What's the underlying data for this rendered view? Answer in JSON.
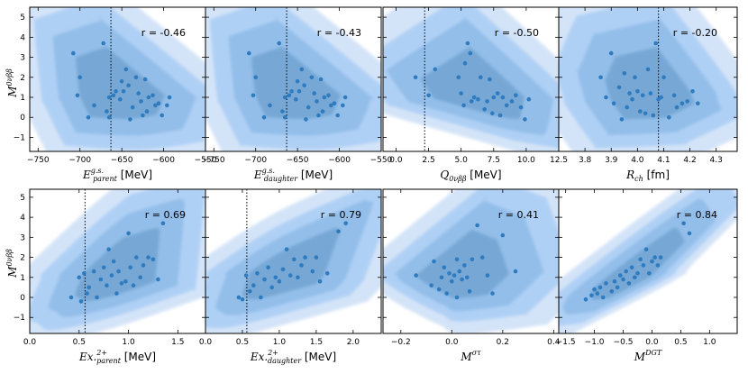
{
  "colors": {
    "kde_levels": [
      "#cfe1f7",
      "#a9cdf4",
      "#86b6e4",
      "#5f96c4"
    ],
    "kde_opacity": [
      0.9,
      0.85,
      0.7,
      0.55
    ],
    "point": "#2f7bbf",
    "axis": "#000000",
    "guide_line": "#000000"
  },
  "y_label": "M^0νββ",
  "chart_data": [
    {
      "type": "scatter",
      "id": "p-eparent",
      "xlabel": "E^{g.s.}_{parent} [MeV]",
      "xlabel_main": "E",
      "xlabel_sup": "g.s.",
      "xlabel_sub": "parent",
      "xlabel_tail": " [MeV]",
      "xlim": [
        -760,
        -550
      ],
      "xticks": [
        -750,
        -700,
        -650,
        -600,
        -550
      ],
      "xtick_labels": [
        "−750",
        "−700",
        "−650",
        "−600",
        "−550"
      ],
      "ylim": [
        -1.7,
        5.5
      ],
      "yticks": [
        -1,
        0,
        1,
        2,
        3,
        4,
        5
      ],
      "r_label": "r = -0.46",
      "vline": -663,
      "kde_center": [
        -660,
        1.3
      ],
      "points": [
        [
          -708,
          3.2
        ],
        [
          -700,
          2.0
        ],
        [
          -703,
          1.1
        ],
        [
          -690,
          0.0
        ],
        [
          -683,
          0.6
        ],
        [
          -672,
          3.7
        ],
        [
          -668,
          0.3
        ],
        [
          -665,
          0.0
        ],
        [
          -665,
          1.0
        ],
        [
          -660,
          1.1
        ],
        [
          -657,
          1.3
        ],
        [
          -652,
          0.9
        ],
        [
          -650,
          1.8
        ],
        [
          -648,
          1.3
        ],
        [
          -645,
          2.4
        ],
        [
          -642,
          1.6
        ],
        [
          -640,
          -0.1
        ],
        [
          -637,
          0.5
        ],
        [
          -633,
          2.0
        ],
        [
          -630,
          1.2
        ],
        [
          -627,
          0.8
        ],
        [
          -625,
          0.1
        ],
        [
          -622,
          1.9
        ],
        [
          -620,
          0.3
        ],
        [
          -618,
          1.0
        ],
        [
          -613,
          1.1
        ],
        [
          -610,
          0.6
        ],
        [
          -606,
          0.7
        ],
        [
          -602,
          0.1
        ],
        [
          -596,
          0.6
        ],
        [
          -593,
          1.0
        ]
      ]
    },
    {
      "type": "scatter",
      "id": "p-edaughter",
      "xlabel": "E^{g.s.}_{daughter} [MeV]",
      "xlabel_main": "E",
      "xlabel_sup": "g.s.",
      "xlabel_sub": "daughter",
      "xlabel_tail": " [MeV]",
      "xlim": [
        -760,
        -550
      ],
      "xticks": [
        -750,
        -700,
        -650,
        -600,
        -550
      ],
      "xtick_labels": [
        "−750",
        "−700",
        "−650",
        "−600",
        "−550"
      ],
      "ylim": [
        -1.7,
        5.5
      ],
      "yticks": [
        -1,
        0,
        1,
        2,
        3,
        4,
        5
      ],
      "r_label": "r = -0.43",
      "vline": -663,
      "kde_center": [
        -660,
        1.3
      ],
      "points": [
        [
          -708,
          3.2
        ],
        [
          -700,
          2.0
        ],
        [
          -703,
          1.1
        ],
        [
          -690,
          0.0
        ],
        [
          -683,
          0.6
        ],
        [
          -672,
          3.7
        ],
        [
          -668,
          0.3
        ],
        [
          -665,
          0.0
        ],
        [
          -665,
          1.0
        ],
        [
          -660,
          1.1
        ],
        [
          -657,
          1.3
        ],
        [
          -652,
          0.9
        ],
        [
          -650,
          1.8
        ],
        [
          -648,
          1.3
        ],
        [
          -645,
          2.4
        ],
        [
          -642,
          1.6
        ],
        [
          -640,
          -0.1
        ],
        [
          -637,
          0.5
        ],
        [
          -633,
          2.0
        ],
        [
          -630,
          1.2
        ],
        [
          -627,
          0.8
        ],
        [
          -625,
          0.1
        ],
        [
          -622,
          1.9
        ],
        [
          -620,
          0.3
        ],
        [
          -618,
          1.0
        ],
        [
          -613,
          1.1
        ],
        [
          -610,
          0.6
        ],
        [
          -606,
          0.7
        ],
        [
          -602,
          0.1
        ],
        [
          -596,
          0.6
        ],
        [
          -593,
          1.0
        ]
      ]
    },
    {
      "type": "scatter",
      "id": "p-q",
      "xlabel": "Q_{0νββ} [MeV]",
      "xlabel_main": "Q",
      "xlabel_sup": "",
      "xlabel_sub": "0νββ",
      "xlabel_tail": " [MeV]",
      "xlim": [
        -1,
        12.5
      ],
      "xticks": [
        0.0,
        2.5,
        5.0,
        7.5,
        10.0,
        12.5
      ],
      "xtick_labels": [
        "0.0",
        "2.5",
        "5.0",
        "7.5",
        "10.0",
        "12.5"
      ],
      "ylim": [
        -1.7,
        5.5
      ],
      "yticks": [
        -1,
        0,
        1,
        2,
        3,
        4,
        5
      ],
      "r_label": "r = -0.50",
      "vline": 2.2,
      "kde_center": [
        6.2,
        1.2
      ],
      "points": [
        [
          1.5,
          2.0
        ],
        [
          2.5,
          1.1
        ],
        [
          3.0,
          2.4
        ],
        [
          4.8,
          2.0
        ],
        [
          5.0,
          1.2
        ],
        [
          5.2,
          0.6
        ],
        [
          5.3,
          2.7
        ],
        [
          5.5,
          3.7
        ],
        [
          5.7,
          3.2
        ],
        [
          5.8,
          0.8
        ],
        [
          6.0,
          1.0
        ],
        [
          6.3,
          0.9
        ],
        [
          6.5,
          2.0
        ],
        [
          6.8,
          0.4
        ],
        [
          7.0,
          0.8
        ],
        [
          7.2,
          1.9
        ],
        [
          7.4,
          0.2
        ],
        [
          7.5,
          1.0
        ],
        [
          7.8,
          1.2
        ],
        [
          8.0,
          0.1
        ],
        [
          8.2,
          1.0
        ],
        [
          8.5,
          0.6
        ],
        [
          8.9,
          0.8
        ],
        [
          9.2,
          1.1
        ],
        [
          9.6,
          0.5
        ],
        [
          9.9,
          -0.1
        ],
        [
          10.2,
          0.9
        ]
      ]
    },
    {
      "type": "scatter",
      "id": "p-rch",
      "xlabel": "R_{ch} [fm]",
      "xlabel_main": "R",
      "xlabel_sup": "",
      "xlabel_sub": "ch",
      "xlabel_tail": " [fm]",
      "xlim": [
        3.7,
        4.38
      ],
      "xticks": [
        3.8,
        3.9,
        4.0,
        4.1,
        4.2,
        4.3
      ],
      "xtick_labels": [
        "3.8",
        "3.9",
        "4.0",
        "4.1",
        "4.2",
        "4.3"
      ],
      "ylim": [
        -1.7,
        5.5
      ],
      "yticks": [
        -1,
        0,
        1,
        2,
        3,
        4,
        5
      ],
      "r_label": "r = -0.20",
      "vline": 4.08,
      "kde_center": [
        4.05,
        1.2
      ],
      "points": [
        [
          3.86,
          2.0
        ],
        [
          3.88,
          1.0
        ],
        [
          3.9,
          3.2
        ],
        [
          3.91,
          0.7
        ],
        [
          3.93,
          1.5
        ],
        [
          3.94,
          -0.1
        ],
        [
          3.95,
          2.2
        ],
        [
          3.96,
          0.5
        ],
        [
          3.97,
          1.2
        ],
        [
          3.98,
          0.9
        ],
        [
          3.99,
          2.0
        ],
        [
          4.0,
          1.3
        ],
        [
          4.01,
          0.3
        ],
        [
          4.02,
          1.1
        ],
        [
          4.03,
          0.2
        ],
        [
          4.04,
          2.4
        ],
        [
          4.05,
          1.2
        ],
        [
          4.06,
          0.1
        ],
        [
          4.07,
          3.7
        ],
        [
          4.08,
          0.9
        ],
        [
          4.09,
          1.0
        ],
        [
          4.1,
          2.0
        ],
        [
          4.12,
          0.0
        ],
        [
          4.14,
          1.1
        ],
        [
          4.15,
          0.5
        ],
        [
          4.17,
          0.7
        ],
        [
          4.19,
          0.8
        ],
        [
          4.21,
          1.3
        ],
        [
          4.23,
          0.7
        ]
      ]
    },
    {
      "type": "scatter",
      "id": "p-exparent",
      "xlabel": "Ex.^{2+}_{parent} [MeV]",
      "xlabel_main": "Ex.",
      "xlabel_sup": "2+",
      "xlabel_sub": "parent",
      "xlabel_tail": " [MeV]",
      "xlim": [
        0.0,
        1.78
      ],
      "xticks": [
        0.0,
        0.5,
        1.0,
        1.5
      ],
      "xtick_labels": [
        "0.0",
        "0.5",
        "1.0",
        "1.5"
      ],
      "ylim": [
        -1.8,
        5.4
      ],
      "yticks": [
        -1,
        0,
        1,
        2,
        3,
        4,
        5
      ],
      "r_label": "r = 0.69",
      "vline": 0.56,
      "kde_center": [
        0.9,
        1.1
      ],
      "points": [
        [
          0.42,
          0.0
        ],
        [
          0.5,
          1.0
        ],
        [
          0.52,
          -0.2
        ],
        [
          0.55,
          1.2
        ],
        [
          0.58,
          0.2
        ],
        [
          0.6,
          0.5
        ],
        [
          0.65,
          1.3
        ],
        [
          0.68,
          0.0
        ],
        [
          0.72,
          0.9
        ],
        [
          0.75,
          1.5
        ],
        [
          0.78,
          0.6
        ],
        [
          0.8,
          2.4
        ],
        [
          0.83,
          1.1
        ],
        [
          0.85,
          1.8
        ],
        [
          0.88,
          0.2
        ],
        [
          0.9,
          1.3
        ],
        [
          0.93,
          0.7
        ],
        [
          0.97,
          0.8
        ],
        [
          1.0,
          3.2
        ],
        [
          1.02,
          1.5
        ],
        [
          1.05,
          0.6
        ],
        [
          1.08,
          2.0
        ],
        [
          1.12,
          1.0
        ],
        [
          1.15,
          1.6
        ],
        [
          1.2,
          2.0
        ],
        [
          1.25,
          1.9
        ],
        [
          1.3,
          0.9
        ],
        [
          1.35,
          3.7
        ]
      ]
    },
    {
      "type": "scatter",
      "id": "p-exdaughter",
      "xlabel": "Ex.^{2+}_{daughter} [MeV]",
      "xlabel_main": "Ex.",
      "xlabel_sup": "2+",
      "xlabel_sub": "daughter",
      "xlabel_tail": " [MeV]",
      "xlim": [
        0.0,
        2.38
      ],
      "xticks": [
        0.0,
        0.5,
        1.0,
        1.5,
        2.0
      ],
      "xtick_labels": [
        "0.0",
        "0.5",
        "1.0",
        "1.5",
        "2.0"
      ],
      "ylim": [
        -1.8,
        5.4
      ],
      "yticks": [
        -1,
        0,
        1,
        2,
        3,
        4,
        5
      ],
      "r_label": "r = 0.79",
      "vline": 0.56,
      "kde_center": [
        1.1,
        1.2
      ],
      "points": [
        [
          0.45,
          0.0
        ],
        [
          0.5,
          -0.1
        ],
        [
          0.55,
          1.1
        ],
        [
          0.6,
          0.3
        ],
        [
          0.65,
          0.6
        ],
        [
          0.7,
          1.2
        ],
        [
          0.75,
          0.0
        ],
        [
          0.8,
          0.9
        ],
        [
          0.85,
          1.5
        ],
        [
          0.9,
          0.5
        ],
        [
          0.95,
          1.0
        ],
        [
          1.0,
          0.8
        ],
        [
          1.05,
          1.4
        ],
        [
          1.1,
          2.4
        ],
        [
          1.15,
          1.1
        ],
        [
          1.2,
          1.9
        ],
        [
          1.25,
          1.0
        ],
        [
          1.3,
          1.6
        ],
        [
          1.35,
          2.0
        ],
        [
          1.45,
          1.3
        ],
        [
          1.5,
          2.0
        ],
        [
          1.55,
          0.8
        ],
        [
          1.65,
          1.2
        ],
        [
          1.8,
          3.3
        ],
        [
          1.9,
          3.7
        ]
      ]
    },
    {
      "type": "scatter",
      "id": "p-msigmatau",
      "xlabel": "M^{στ}",
      "xlabel_main": "M",
      "xlabel_sup": "στ",
      "xlabel_sub": "",
      "xlabel_tail": "",
      "xlim": [
        -0.27,
        0.42
      ],
      "xticks": [
        -0.2,
        0.0,
        0.2,
        0.4
      ],
      "xtick_labels": [
        "−0.2",
        "0.0",
        "0.2",
        "0.4"
      ],
      "ylim": [
        -1.8,
        5.4
      ],
      "yticks": [
        -1,
        0,
        1,
        2,
        3,
        4,
        5
      ],
      "r_label": "r = 0.41",
      "vline": null,
      "kde_center": [
        0.0,
        1.0
      ],
      "points": [
        [
          -0.14,
          1.1
        ],
        [
          -0.08,
          0.6
        ],
        [
          -0.07,
          1.8
        ],
        [
          -0.05,
          0.4
        ],
        [
          -0.04,
          1.0
        ],
        [
          -0.03,
          1.5
        ],
        [
          -0.02,
          0.2
        ],
        [
          -0.01,
          1.2
        ],
        [
          0.0,
          0.8
        ],
        [
          0.01,
          1.1
        ],
        [
          0.02,
          0.0
        ],
        [
          0.02,
          1.9
        ],
        [
          0.03,
          1.3
        ],
        [
          0.04,
          0.9
        ],
        [
          0.05,
          1.6
        ],
        [
          0.06,
          1.0
        ],
        [
          0.07,
          0.3
        ],
        [
          0.08,
          1.9
        ],
        [
          0.1,
          3.6
        ],
        [
          0.12,
          2.0
        ],
        [
          0.14,
          1.1
        ],
        [
          0.16,
          0.2
        ],
        [
          0.2,
          3.1
        ],
        [
          0.25,
          1.3
        ]
      ]
    },
    {
      "type": "scatter",
      "id": "p-mdgt",
      "xlabel": "M^{DGT}",
      "xlabel_main": "M",
      "xlabel_sup": "DGT",
      "xlabel_sub": "",
      "xlabel_tail": "",
      "xlim": [
        -1.62,
        1.48
      ],
      "xticks": [
        -1.5,
        -1.0,
        -0.5,
        0.0,
        0.5,
        1.0
      ],
      "xtick_labels": [
        "−1.5",
        "−1.0",
        "−0.5",
        "0.0",
        "0.5",
        "1.0"
      ],
      "ylim": [
        -1.8,
        5.4
      ],
      "yticks": [
        -1,
        0,
        1,
        2,
        3,
        4,
        5
      ],
      "r_label": "r = 0.84",
      "vline": null,
      "kde_center": [
        -0.3,
        1.1
      ],
      "points": [
        [
          -1.15,
          -0.1
        ],
        [
          -1.05,
          0.1
        ],
        [
          -1.0,
          0.4
        ],
        [
          -0.95,
          0.2
        ],
        [
          -0.9,
          0.5
        ],
        [
          -0.85,
          0.0
        ],
        [
          -0.8,
          0.7
        ],
        [
          -0.7,
          0.3
        ],
        [
          -0.65,
          0.8
        ],
        [
          -0.6,
          0.5
        ],
        [
          -0.55,
          1.1
        ],
        [
          -0.5,
          0.9
        ],
        [
          -0.45,
          1.3
        ],
        [
          -0.4,
          0.7
        ],
        [
          -0.35,
          1.5
        ],
        [
          -0.3,
          1.0
        ],
        [
          -0.25,
          1.2
        ],
        [
          -0.2,
          1.9
        ],
        [
          -0.15,
          1.6
        ],
        [
          -0.1,
          2.4
        ],
        [
          -0.05,
          1.2
        ],
        [
          0.0,
          1.8
        ],
        [
          0.05,
          2.0
        ],
        [
          0.1,
          1.6
        ],
        [
          0.15,
          2.0
        ],
        [
          0.55,
          3.7
        ],
        [
          0.65,
          3.2
        ]
      ]
    }
  ]
}
